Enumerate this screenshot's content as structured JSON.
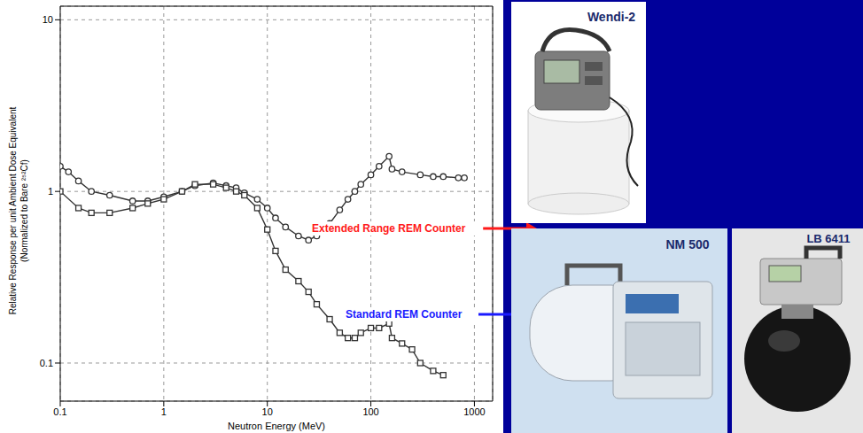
{
  "chart_data": {
    "type": "line",
    "x_label": "Neutron Energy (MeV)",
    "y_label": [
      "Relative Response per unit Ambient Dose Equivalent",
      "(Normalized to Bare ²⁵²Cf)"
    ],
    "log": true,
    "grid": true,
    "xlim": [
      0.1,
      1500
    ],
    "ylim": [
      0.06,
      12
    ],
    "xticks": [
      0.1,
      1,
      10,
      100,
      1000
    ],
    "yticks": [
      0.1,
      1,
      10
    ],
    "series": [
      {
        "name": "Extended Range REM Counter",
        "color": "#333333",
        "marker": "circle",
        "line_style": "solid",
        "x": [
          0.1,
          0.12,
          0.15,
          0.2,
          0.3,
          0.5,
          0.7,
          1,
          1.5,
          2,
          3,
          4,
          5,
          6,
          8,
          10,
          12,
          15,
          20,
          25,
          30,
          40,
          50,
          60,
          70,
          80,
          100,
          120,
          150,
          160,
          200,
          300,
          400,
          500,
          700,
          800
        ],
        "values": [
          1.4,
          1.3,
          1.15,
          1.0,
          0.95,
          0.88,
          0.88,
          0.93,
          1.0,
          1.08,
          1.12,
          1.08,
          1.05,
          0.98,
          0.9,
          0.8,
          0.7,
          0.62,
          0.55,
          0.52,
          0.55,
          0.65,
          0.78,
          0.9,
          1.0,
          1.1,
          1.25,
          1.4,
          1.6,
          1.35,
          1.3,
          1.25,
          1.22,
          1.22,
          1.2,
          1.2
        ]
      },
      {
        "name": "Standard REM Counter",
        "color": "#333333",
        "marker": "square",
        "line_style": "solid",
        "x": [
          0.1,
          0.15,
          0.2,
          0.3,
          0.5,
          0.7,
          1,
          1.5,
          2,
          3,
          4,
          5,
          6,
          8,
          10,
          12,
          15,
          20,
          25,
          30,
          40,
          50,
          60,
          70,
          80,
          100,
          120,
          150,
          160,
          200,
          250,
          300,
          400,
          500
        ],
        "values": [
          1.0,
          0.8,
          0.75,
          0.75,
          0.8,
          0.85,
          0.9,
          1.0,
          1.1,
          1.1,
          1.05,
          1.0,
          0.95,
          0.8,
          0.6,
          0.45,
          0.35,
          0.3,
          0.26,
          0.22,
          0.18,
          0.15,
          0.14,
          0.14,
          0.15,
          0.16,
          0.16,
          0.17,
          0.14,
          0.13,
          0.12,
          0.1,
          0.09,
          0.085
        ]
      }
    ],
    "annotations": [
      {
        "text": "Extended Range REM Counter",
        "color": "#ff1a1a"
      },
      {
        "text": "Standard REM Counter",
        "color": "#1a1aff"
      }
    ],
    "photo_labels": [
      "Wendi-2",
      "NM 500",
      "LB 6411"
    ]
  }
}
